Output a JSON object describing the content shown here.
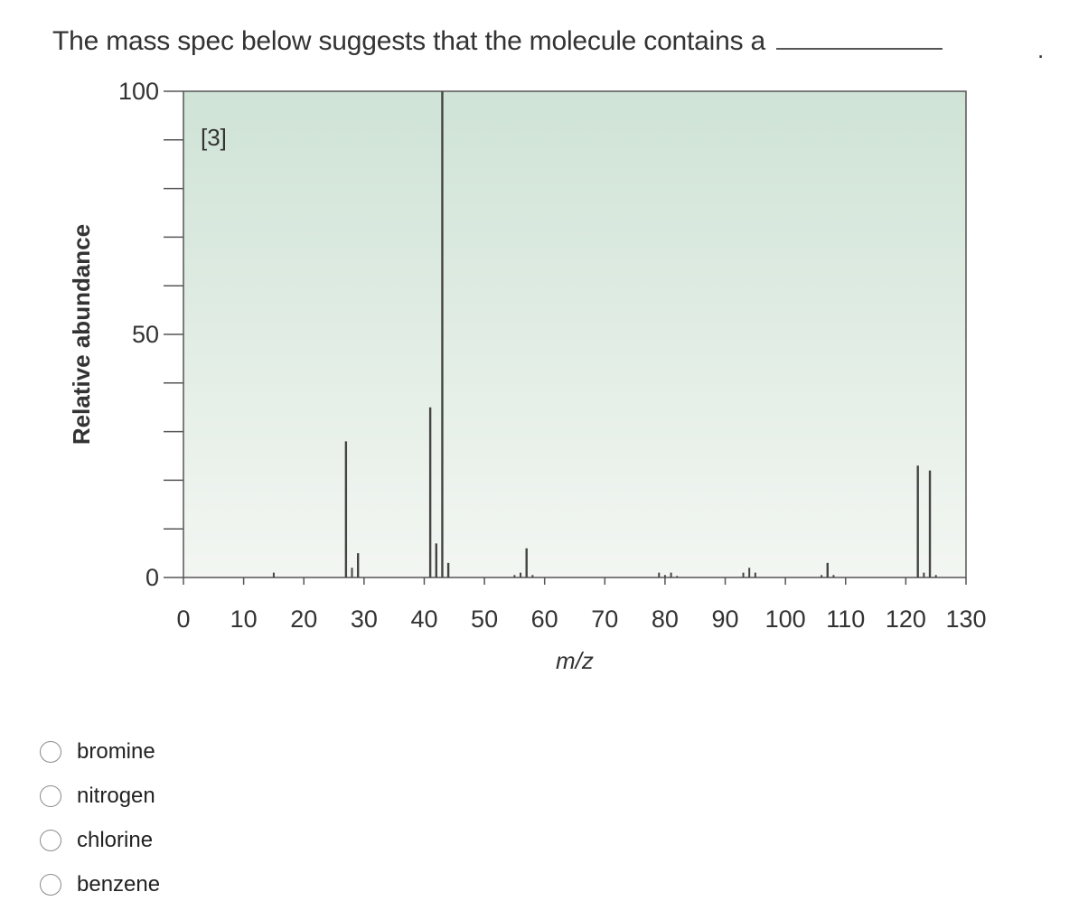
{
  "question": {
    "text": "The mass spec below suggests that the molecule contains a",
    "period": "."
  },
  "chart_data": {
    "type": "bar",
    "title": "",
    "xlabel": "m/z",
    "ylabel": "Relative abundance",
    "xlim": [
      0,
      130
    ],
    "ylim": [
      0,
      100
    ],
    "xticks": [
      0,
      10,
      20,
      30,
      40,
      50,
      60,
      70,
      80,
      90,
      100,
      110,
      120,
      130
    ],
    "yticks": [
      0,
      50,
      100
    ],
    "annotation": "[3]",
    "grid": false,
    "background_gradient": [
      "#cfe3d6",
      "#f3f6f2"
    ],
    "bar_color": "#444444",
    "x": [
      15,
      27,
      28,
      29,
      41,
      42,
      43,
      44,
      55,
      56,
      57,
      58,
      79,
      80,
      81,
      82,
      93,
      94,
      95,
      106,
      107,
      108,
      122,
      123,
      124,
      125
    ],
    "values": [
      1,
      28,
      2,
      5,
      35,
      7,
      100,
      3,
      0.5,
      1,
      6,
      0.5,
      1,
      0.5,
      1,
      0.3,
      1,
      2,
      1,
      0.5,
      3,
      0.5,
      23,
      1,
      22,
      0.5
    ]
  },
  "options": [
    {
      "label": "bromine"
    },
    {
      "label": "nitrogen"
    },
    {
      "label": "chlorine"
    },
    {
      "label": "benzene"
    }
  ]
}
